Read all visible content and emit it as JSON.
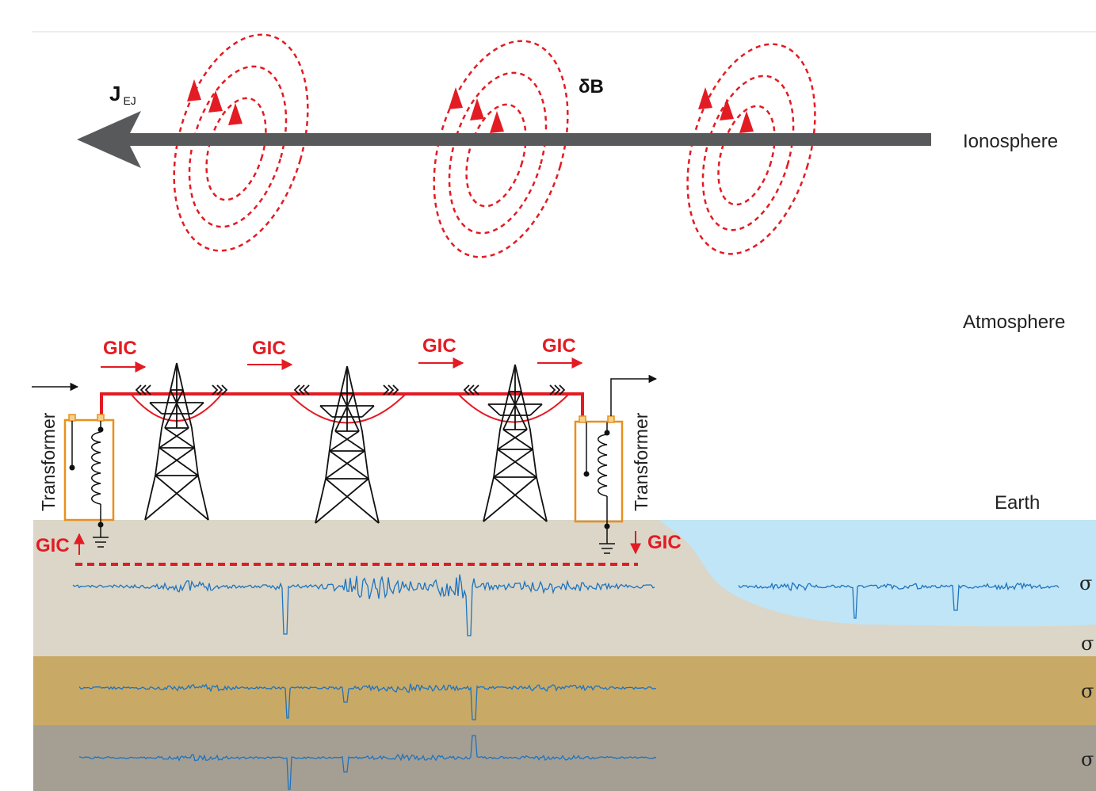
{
  "labels": {
    "current": "J",
    "current_sub": "EJ",
    "delta_b": "δB",
    "ionosphere": "Ionosphere",
    "atmosphere": "Atmosphere",
    "earth": "Earth",
    "gic": "GIC",
    "transformer": "Transformer",
    "sigma": "σ"
  },
  "colors": {
    "current_arrow": "#58595b",
    "field_loops": "#e31b23",
    "gic": "#e31b23",
    "transformer_box": "#e8901e",
    "ground_layer_1": "#dbd6c7",
    "ground_layer_2": "#c9a966",
    "ground_layer_3": "#a59f93",
    "ocean": "#bfe5f7",
    "seismic_trace": "#1e73be"
  }
}
